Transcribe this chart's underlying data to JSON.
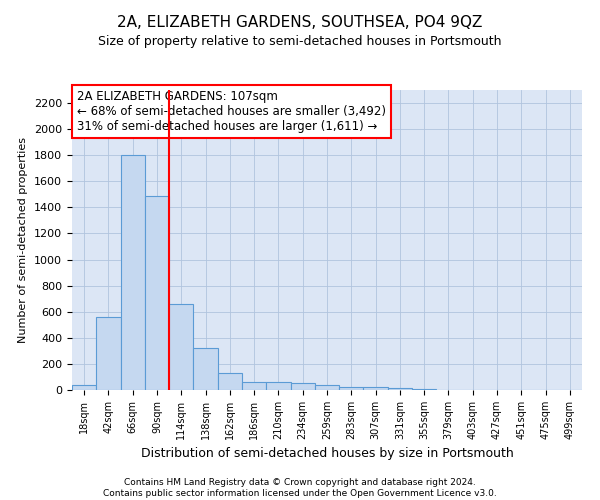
{
  "title": "2A, ELIZABETH GARDENS, SOUTHSEA, PO4 9QZ",
  "subtitle": "Size of property relative to semi-detached houses in Portsmouth",
  "xlabel": "Distribution of semi-detached houses by size in Portsmouth",
  "ylabel": "Number of semi-detached properties",
  "bar_labels": [
    "18sqm",
    "42sqm",
    "66sqm",
    "90sqm",
    "114sqm",
    "138sqm",
    "162sqm",
    "186sqm",
    "210sqm",
    "234sqm",
    "259sqm",
    "283sqm",
    "307sqm",
    "331sqm",
    "355sqm",
    "379sqm",
    "403sqm",
    "427sqm",
    "451sqm",
    "475sqm",
    "499sqm"
  ],
  "bar_values": [
    40,
    560,
    1800,
    1490,
    660,
    325,
    130,
    65,
    60,
    50,
    35,
    25,
    20,
    15,
    10,
    0,
    0,
    0,
    0,
    0,
    0
  ],
  "bar_color": "#c5d8f0",
  "bar_edge_color": "#5b9bd5",
  "vline_x": 3.5,
  "vline_color": "red",
  "ylim": [
    0,
    2300
  ],
  "yticks": [
    0,
    200,
    400,
    600,
    800,
    1000,
    1200,
    1400,
    1600,
    1800,
    2000,
    2200
  ],
  "annotation_text": "2A ELIZABETH GARDENS: 107sqm\n← 68% of semi-detached houses are smaller (3,492)\n31% of semi-detached houses are larger (1,611) →",
  "annotation_box_color": "white",
  "annotation_box_edge_color": "red",
  "footer_line1": "Contains HM Land Registry data © Crown copyright and database right 2024.",
  "footer_line2": "Contains public sector information licensed under the Open Government Licence v3.0.",
  "plot_bg_color": "#dce6f5",
  "grid_color": "#b0c4de"
}
